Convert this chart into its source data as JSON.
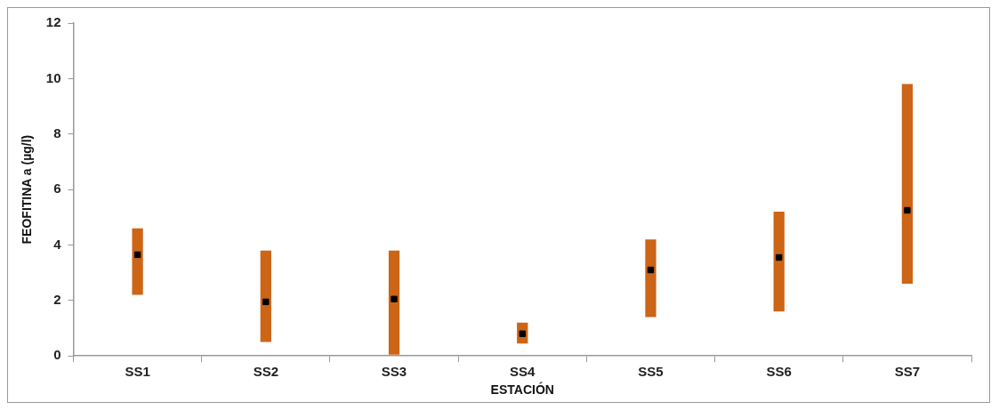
{
  "chart_data": {
    "type": "bar",
    "xlabel": "ESTACIÓN",
    "ylabel": "FEOFITINA a (µg/l)",
    "categories": [
      "SS1",
      "SS2",
      "SS3",
      "SS4",
      "SS5",
      "SS6",
      "SS7"
    ],
    "ylim": [
      0,
      12
    ],
    "yticks": [
      0,
      2,
      4,
      6,
      8,
      10,
      12
    ],
    "grid": false,
    "legend": false,
    "series": [
      {
        "color": "#cc6516",
        "base": [
          2.2,
          0.5,
          0.05,
          0.45,
          1.4,
          1.6,
          2.6
        ],
        "values": [
          2.4,
          3.3,
          3.75,
          0.75,
          2.8,
          3.6,
          7.2
        ]
      },
      {
        "type": "scatter",
        "color": "#000000",
        "marker": "square",
        "x": [
          "SS1",
          "SS2",
          "SS3",
          "SS4",
          "SS5",
          "SS6",
          "SS7"
        ],
        "values": [
          3.65,
          1.95,
          2.05,
          0.8,
          3.1,
          3.55,
          5.25
        ]
      }
    ]
  }
}
